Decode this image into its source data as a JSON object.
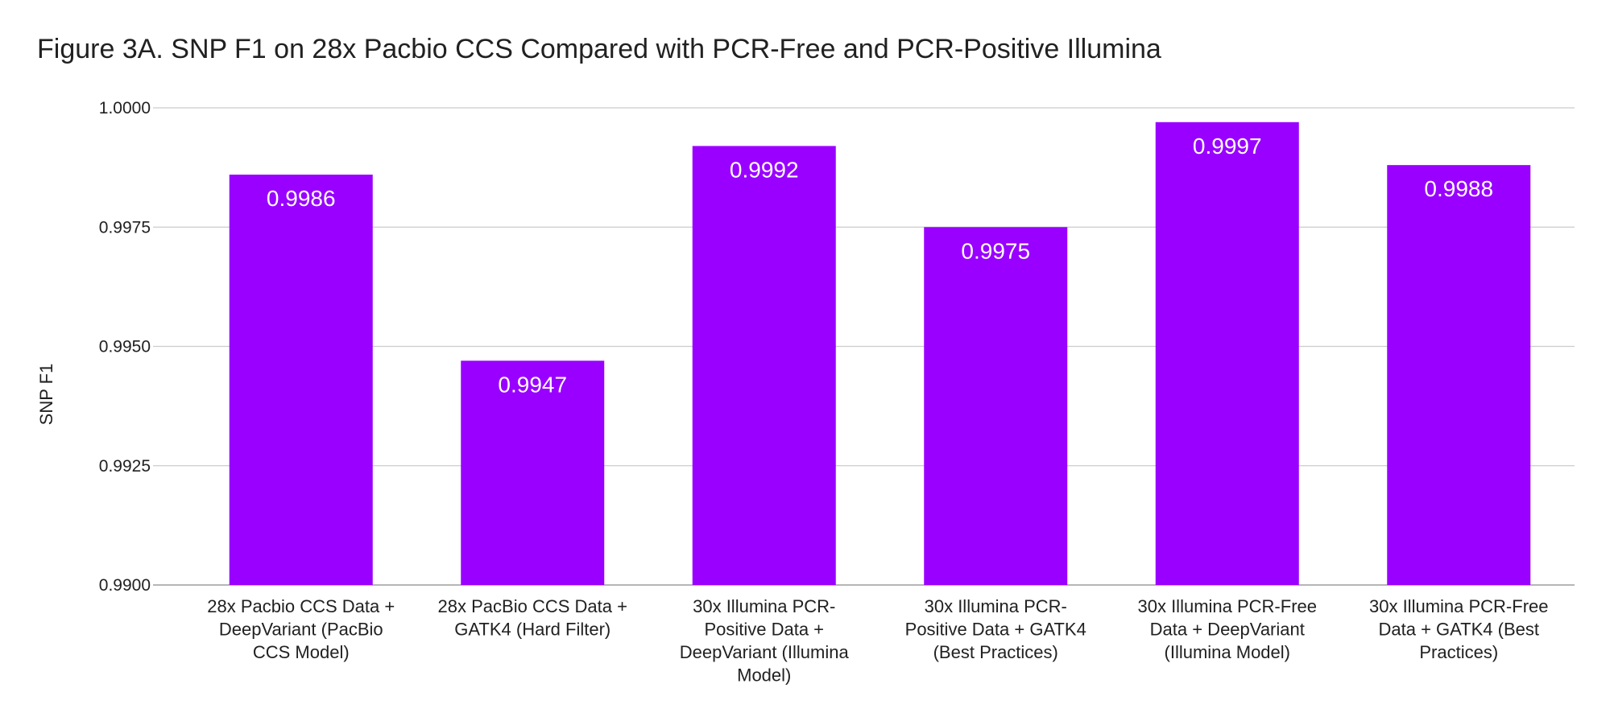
{
  "chart_data": {
    "type": "bar",
    "title": "Figure 3A. SNP F1 on 28x Pacbio CCS Compared with PCR-Free and PCR-Positive Illumina",
    "xlabel": "",
    "ylabel": "SNP F1",
    "ylim": [
      0.99,
      1.0
    ],
    "yticks": [
      0.99,
      0.9925,
      0.995,
      0.9975,
      1.0
    ],
    "ytick_labels": [
      "0.9900",
      "0.9925",
      "0.9950",
      "0.9975",
      "1.0000"
    ],
    "grid": true,
    "bar_color": "#9900ff",
    "categories": [
      [
        "28x Pacbio CCS Data +",
        "DeepVariant (PacBio",
        "CCS Model)"
      ],
      [
        "28x PacBio CCS Data +",
        "GATK4 (Hard Filter)"
      ],
      [
        "30x Illumina PCR-",
        "Positive Data +",
        "DeepVariant (Illumina",
        "Model)"
      ],
      [
        "30x Illumina PCR-",
        "Positive Data + GATK4",
        "(Best Practices)"
      ],
      [
        "30x Illumina PCR-Free",
        "Data + DeepVariant",
        "(Illumina Model)"
      ],
      [
        "30x Illumina PCR-Free",
        "Data + GATK4 (Best",
        "Practices)"
      ]
    ],
    "values": [
      0.9986,
      0.9947,
      0.9992,
      0.9975,
      0.9997,
      0.9988
    ],
    "data_labels": [
      "0.9986",
      "0.9947",
      "0.9992",
      "0.9975",
      "0.9997",
      "0.9988"
    ]
  }
}
